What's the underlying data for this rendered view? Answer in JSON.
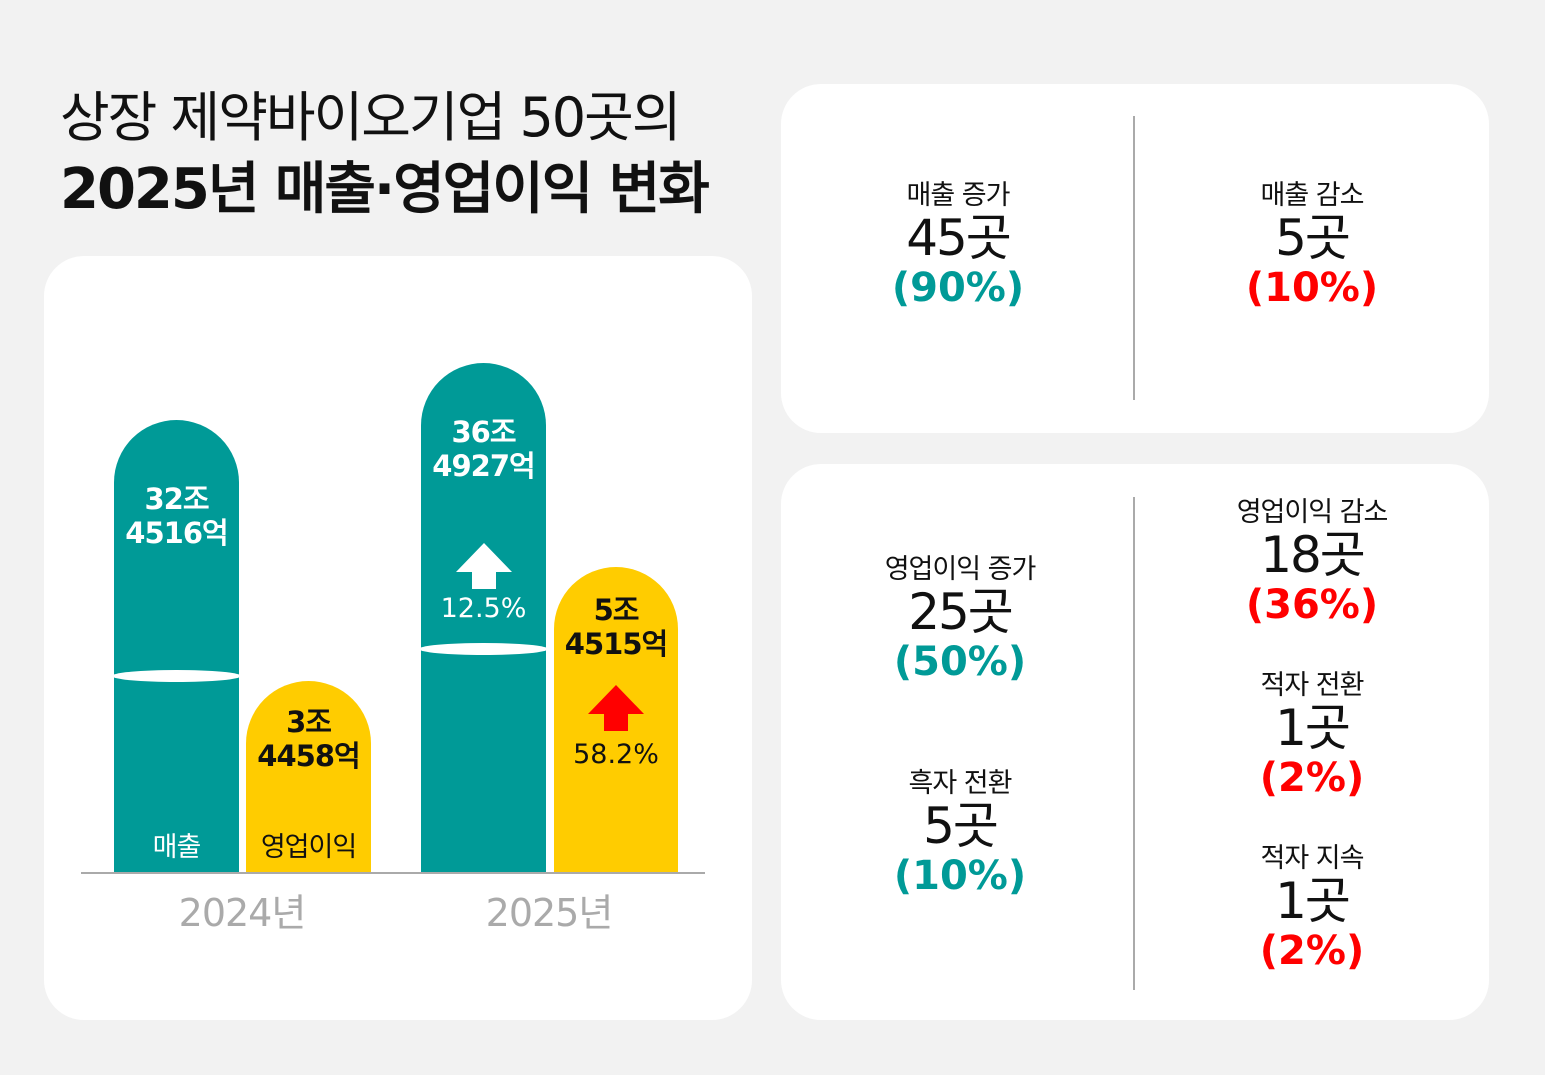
{
  "title": {
    "line1": "상장 제약바이오기업 50곳의",
    "line2": "2025년 매출·영업이익 변화"
  },
  "colors": {
    "teal": "#009a97",
    "yellow": "#ffcc00",
    "red": "#ff0000"
  },
  "chart_data": {
    "type": "bar",
    "categories": [
      "2024년",
      "2025년"
    ],
    "series": [
      {
        "name": "매출",
        "values_krw_eok": [
          324516,
          364927
        ],
        "labels": [
          "32조\n4516억",
          "36조\n4927억"
        ]
      },
      {
        "name": "영업이익",
        "values_krw_eok": [
          34458,
          54515
        ],
        "labels": [
          "3조\n4458억",
          "5조\n4515억"
        ]
      }
    ],
    "growth": {
      "revenue": "12.5%",
      "operating_profit": "58.2%"
    },
    "axis_break": true
  },
  "bars": {
    "rev2024": {
      "a": "32조",
      "b": "4516억",
      "label": "매출"
    },
    "op2024": {
      "a": "3조",
      "b": "4458억",
      "label": "영업이익"
    },
    "rev2025": {
      "a": "36조",
      "b": "4927억",
      "pct": "12.5%"
    },
    "op2025": {
      "a": "5조",
      "b": "4515억",
      "pct": "58.2%"
    }
  },
  "years": [
    "2024년",
    "2025년"
  ],
  "stats": {
    "rev_up": {
      "h": "매출 증가",
      "n": "45곳",
      "p": "(90%)"
    },
    "rev_down": {
      "h": "매출 감소",
      "n": "5곳",
      "p": "(10%)"
    },
    "op_up": {
      "h": "영업이익 증가",
      "n": "25곳",
      "p": "(50%)"
    },
    "turn_profit": {
      "h": "흑자 전환",
      "n": "5곳",
      "p": "(10%)"
    },
    "op_down": {
      "h": "영업이익 감소",
      "n": "18곳",
      "p": "(36%)"
    },
    "turn_loss": {
      "h": "적자 전환",
      "n": "1곳",
      "p": "(2%)"
    },
    "cont_loss": {
      "h": "적자 지속",
      "n": "1곳",
      "p": "(2%)"
    }
  }
}
